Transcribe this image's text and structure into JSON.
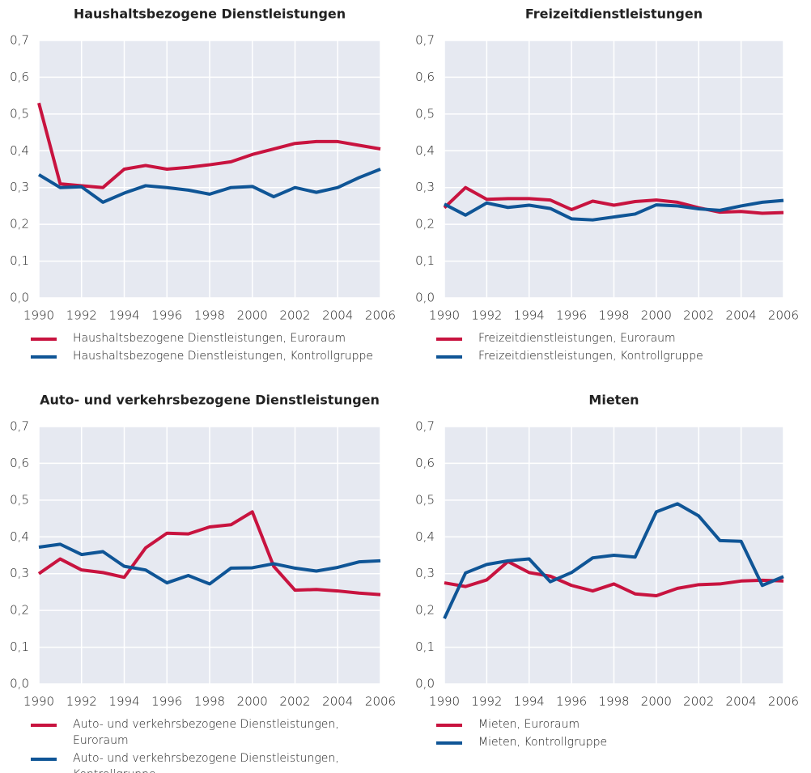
{
  "chart_data": [
    {
      "type": "line",
      "title": "Haushaltsbezogene Dienstleistungen",
      "x": [
        1990,
        1991,
        1992,
        1993,
        1994,
        1995,
        1996,
        1997,
        1998,
        1999,
        2000,
        2001,
        2002,
        2003,
        2004,
        2005,
        2006
      ],
      "xlim": [
        1990,
        2006
      ],
      "xticks": [
        1990,
        1992,
        1994,
        1996,
        1998,
        2000,
        2002,
        2004,
        2006
      ],
      "ylim": [
        0,
        0.7
      ],
      "yticks": [
        {
          "value": 0,
          "label": "0,0"
        },
        {
          "value": 0.1,
          "label": "0,1"
        },
        {
          "value": 0.2,
          "label": "0,2"
        },
        {
          "value": 0.3,
          "label": "0,3"
        },
        {
          "value": 0.4,
          "label": "0,4"
        },
        {
          "value": 0.5,
          "label": "0,5"
        },
        {
          "value": 0.6,
          "label": "0,6"
        },
        {
          "value": 0.7,
          "label": "0,7"
        }
      ],
      "grid": true,
      "series": [
        {
          "name": "Haushaltsbezogene Dienstleistungen, Euroraum",
          "color": "#c8133f",
          "values": [
            0.53,
            0.31,
            0.305,
            0.3,
            0.35,
            0.36,
            0.35,
            0.355,
            0.362,
            0.37,
            0.39,
            0.405,
            0.42,
            0.425,
            0.425,
            0.415,
            0.405
          ]
        },
        {
          "name": "Haushaltsbezogene Dienstleistungen, Kontrollgruppe",
          "color": "#0f5596",
          "values": [
            0.335,
            0.3,
            0.302,
            0.26,
            0.285,
            0.305,
            0.3,
            0.293,
            0.282,
            0.3,
            0.303,
            0.275,
            0.3,
            0.287,
            0.3,
            0.327,
            0.35
          ]
        }
      ]
    },
    {
      "type": "line",
      "title": "Freizeitdienstleistungen",
      "x": [
        1990,
        1991,
        1992,
        1993,
        1994,
        1995,
        1996,
        1997,
        1998,
        1999,
        2000,
        2001,
        2002,
        2003,
        2004,
        2005,
        2006
      ],
      "xlim": [
        1990,
        2006
      ],
      "xticks": [
        1990,
        1992,
        1994,
        1996,
        1998,
        2000,
        2002,
        2004,
        2006
      ],
      "ylim": [
        0,
        0.7
      ],
      "yticks": [
        {
          "value": 0,
          "label": "0,0"
        },
        {
          "value": 0.1,
          "label": "0,1"
        },
        {
          "value": 0.2,
          "label": "0,2"
        },
        {
          "value": 0.3,
          "label": "0,3"
        },
        {
          "value": 0.4,
          "label": "0,4"
        },
        {
          "value": 0.5,
          "label": "0,5"
        },
        {
          "value": 0.6,
          "label": "0,6"
        },
        {
          "value": 0.7,
          "label": "0,7"
        }
      ],
      "grid": true,
      "series": [
        {
          "name": "Freizeitdienstleistungen, Euroraum",
          "color": "#c8133f",
          "values": [
            0.245,
            0.3,
            0.268,
            0.27,
            0.27,
            0.266,
            0.24,
            0.263,
            0.252,
            0.262,
            0.266,
            0.26,
            0.245,
            0.233,
            0.235,
            0.23,
            0.232
          ]
        },
        {
          "name": "Freizeitdienstleistungen, Kontrollgruppe",
          "color": "#0f5596",
          "values": [
            0.255,
            0.225,
            0.258,
            0.246,
            0.252,
            0.243,
            0.215,
            0.212,
            0.22,
            0.228,
            0.253,
            0.25,
            0.242,
            0.238,
            0.25,
            0.26,
            0.265
          ]
        }
      ]
    },
    {
      "type": "line",
      "title": "Auto- und verkehrsbezogene Dienstleistungen",
      "x": [
        1990,
        1991,
        1992,
        1993,
        1994,
        1995,
        1996,
        1997,
        1998,
        1999,
        2000,
        2001,
        2002,
        2003,
        2004,
        2005,
        2006
      ],
      "xlim": [
        1990,
        2006
      ],
      "xticks": [
        1990,
        1992,
        1994,
        1996,
        1998,
        2000,
        2002,
        2004,
        2006
      ],
      "ylim": [
        0,
        0.7
      ],
      "yticks": [
        {
          "value": 0,
          "label": "0,0"
        },
        {
          "value": 0.1,
          "label": "0,1"
        },
        {
          "value": 0.2,
          "label": "0,2"
        },
        {
          "value": 0.3,
          "label": "0,3"
        },
        {
          "value": 0.4,
          "label": "0,4"
        },
        {
          "value": 0.5,
          "label": "0,5"
        },
        {
          "value": 0.6,
          "label": "0,6"
        },
        {
          "value": 0.7,
          "label": "0,7"
        }
      ],
      "grid": true,
      "series": [
        {
          "name": "Auto- und verkehrsbezogene Dienstleistungen, Euroraum",
          "color": "#c8133f",
          "values": [
            0.3,
            0.34,
            0.31,
            0.303,
            0.29,
            0.37,
            0.41,
            0.408,
            0.427,
            0.433,
            0.468,
            0.32,
            0.255,
            0.257,
            0.253,
            0.247,
            0.243
          ]
        },
        {
          "name": "Auto- und verkehrsbezogene Dienstleistungen, Kontrollgruppe",
          "color": "#0f5596",
          "values": [
            0.372,
            0.38,
            0.352,
            0.36,
            0.32,
            0.31,
            0.275,
            0.295,
            0.272,
            0.315,
            0.316,
            0.327,
            0.315,
            0.307,
            0.317,
            0.332,
            0.335
          ]
        }
      ]
    },
    {
      "type": "line",
      "title": "Mieten",
      "x": [
        1990,
        1991,
        1992,
        1993,
        1994,
        1995,
        1996,
        1997,
        1998,
        1999,
        2000,
        2001,
        2002,
        2003,
        2004,
        2005,
        2006
      ],
      "xlim": [
        1990,
        2006
      ],
      "xticks": [
        1990,
        1992,
        1994,
        1996,
        1998,
        2000,
        2002,
        2004,
        2006
      ],
      "ylim": [
        0,
        0.7
      ],
      "yticks": [
        {
          "value": 0,
          "label": "0,0"
        },
        {
          "value": 0.1,
          "label": "0,1"
        },
        {
          "value": 0.2,
          "label": "0,2"
        },
        {
          "value": 0.3,
          "label": "0,3"
        },
        {
          "value": 0.4,
          "label": "0,4"
        },
        {
          "value": 0.5,
          "label": "0,5"
        },
        {
          "value": 0.6,
          "label": "0,6"
        },
        {
          "value": 0.7,
          "label": "0,7"
        }
      ],
      "grid": true,
      "series": [
        {
          "name": "Mieten, Euroraum",
          "color": "#c8133f",
          "values": [
            0.275,
            0.265,
            0.283,
            0.333,
            0.303,
            0.293,
            0.268,
            0.253,
            0.272,
            0.245,
            0.24,
            0.26,
            0.27,
            0.272,
            0.28,
            0.282,
            0.28
          ]
        },
        {
          "name": "Mieten, Kontrollgruppe",
          "color": "#0f5596",
          "values": [
            0.178,
            0.302,
            0.325,
            0.335,
            0.34,
            0.278,
            0.303,
            0.343,
            0.35,
            0.345,
            0.468,
            0.49,
            0.457,
            0.39,
            0.388,
            0.268,
            0.292
          ]
        }
      ]
    }
  ]
}
